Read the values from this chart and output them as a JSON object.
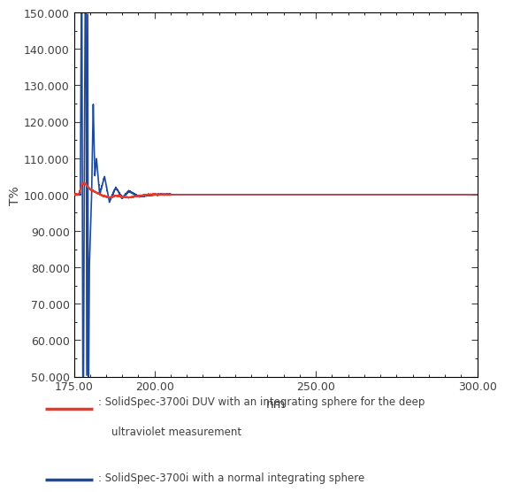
{
  "xlim": [
    175.0,
    300.0
  ],
  "ylim": [
    50.0,
    150.0
  ],
  "xticks": [
    175.0,
    200.0,
    250.0,
    300.0
  ],
  "yticks": [
    50.0,
    60.0,
    70.0,
    80.0,
    90.0,
    100.0,
    110.0,
    120.0,
    130.0,
    140.0,
    150.0
  ],
  "xlabel": "nm",
  "ylabel": "T%",
  "red_color": "#e8392a",
  "blue_color": "#1e4a9c",
  "text_color": "#404040",
  "background_color": "#ffffff",
  "legend_red_text1": ": SolidSpec-3700i DUV with an integrating sphere for the deep",
  "legend_red_text2": "    ultraviolet measurement",
  "legend_blue_text": ": SolidSpec-3700i with a normal integrating sphere"
}
